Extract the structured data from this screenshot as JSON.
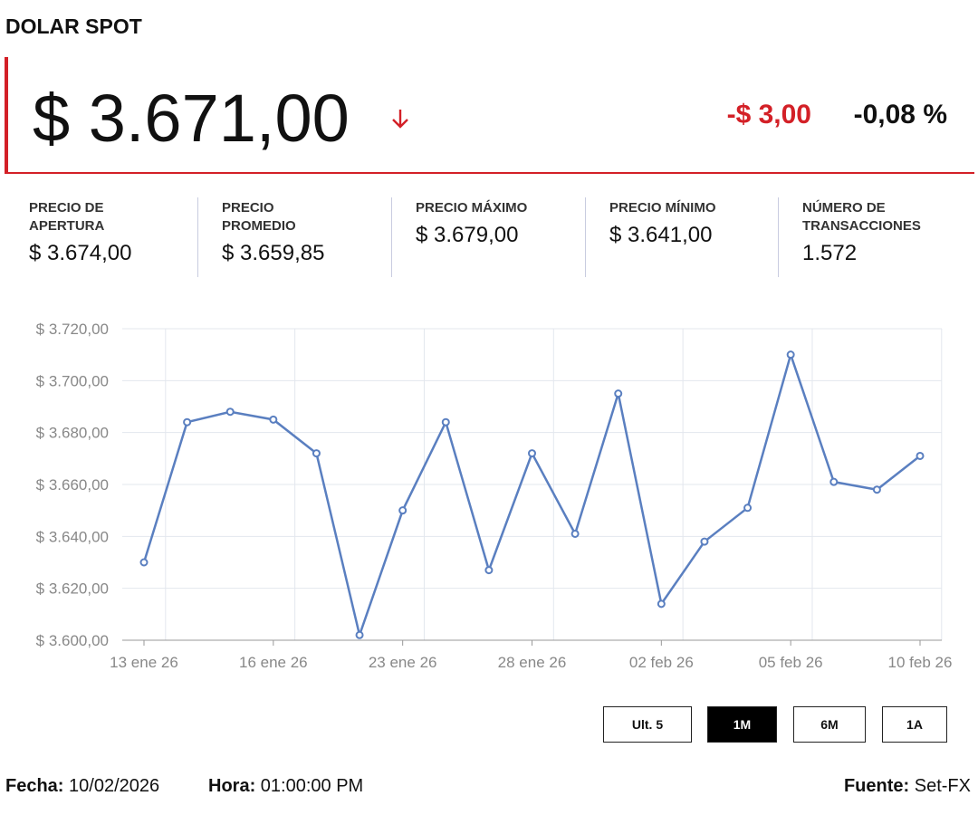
{
  "header": {
    "title": "DOLAR SPOT",
    "price": "$ 3.671,00",
    "change": "-$ 3,00",
    "change_pct": "-0,08 %"
  },
  "stats": [
    {
      "label": [
        "PRECIO DE",
        "APERTURA"
      ],
      "value": "$ 3.674,00"
    },
    {
      "label": [
        "PRECIO",
        "PROMEDIO"
      ],
      "value": "$ 3.659,85"
    },
    {
      "label": [
        "PRECIO MÁXIMO"
      ],
      "value": "$ 3.679,00"
    },
    {
      "label": [
        "PRECIO MÍNIMO"
      ],
      "value": "$ 3.641,00"
    },
    {
      "label": [
        "NÚMERO DE",
        "TRANSACCIONES"
      ],
      "value": "1.572"
    }
  ],
  "chart_data": {
    "type": "line",
    "categories": [
      "13 ene 26",
      null,
      null,
      "16 ene 26",
      null,
      null,
      "23 ene 26",
      null,
      null,
      "28 ene 26",
      null,
      null,
      "02 feb 26",
      null,
      null,
      "05 feb 26",
      null,
      null,
      "10 feb 26"
    ],
    "series": [
      {
        "name": "Dolar spot",
        "color": "#5a7fc0",
        "values": [
          3630,
          3684,
          3688,
          3685,
          3672,
          3602,
          3650,
          3684,
          3627,
          3672,
          3641,
          3695,
          3614,
          3638,
          3651,
          3710,
          3661,
          3658,
          3671
        ]
      }
    ],
    "ylim": [
      3600,
      3720
    ],
    "yticks": [
      {
        "value": 3600,
        "label": "$ 3.600,00"
      },
      {
        "value": 3620,
        "label": "$ 3.620,00"
      },
      {
        "value": 3640,
        "label": "$ 3.640,00"
      },
      {
        "value": 3660,
        "label": "$ 3.660,00"
      },
      {
        "value": 3680,
        "label": "$ 3.680,00"
      },
      {
        "value": 3700,
        "label": "$ 3.700,00"
      },
      {
        "value": 3720,
        "label": "$ 3.720,00"
      }
    ],
    "grid": true
  },
  "buttons": {
    "items": [
      "Ult. 5",
      "1M",
      "6M",
      "1A"
    ],
    "active_index": 1
  },
  "footer": {
    "date_label": "Fecha:",
    "date": "10/02/2026",
    "time_label": "Hora:",
    "time": "01:00:00 PM",
    "source_label": "Fuente:",
    "source": "Set-FX"
  }
}
